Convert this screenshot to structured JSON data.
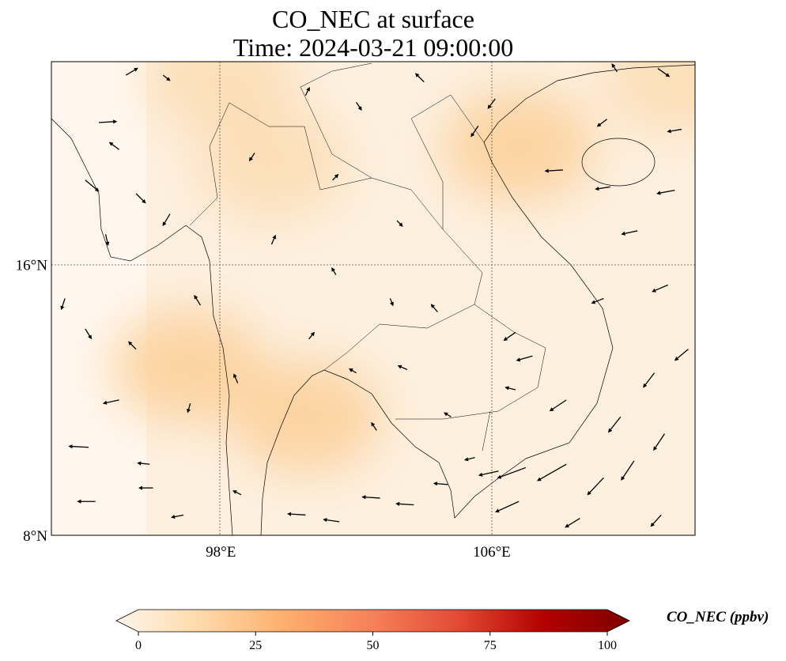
{
  "title": {
    "line1": "CO_NEC at surface",
    "line2": "Time: 2024-03-21 09:00:00"
  },
  "chart_data": {
    "type": "heatmap",
    "variable": "CO_NEC",
    "units": "ppbv",
    "extent": {
      "lon": [
        93,
        112
      ],
      "lat": [
        8,
        22
      ]
    },
    "x_ticks": [
      {
        "value": 98,
        "label": "98°E"
      },
      {
        "value": 106,
        "label": "106°E"
      }
    ],
    "y_ticks": [
      {
        "value": 16,
        "label": "16°N"
      },
      {
        "value": 8,
        "label": "8°N"
      }
    ],
    "gridlines": true,
    "colorbar": {
      "label": "CO_NEC (ppbv)",
      "range": [
        0,
        100
      ],
      "extend": "both",
      "ticks": [
        0,
        25,
        50,
        75,
        100
      ],
      "colormap": [
        "#fff5eb",
        "#fdd9a8",
        "#fdae6b",
        "#f6805a",
        "#e34a33",
        "#b30000",
        "#7f0000"
      ]
    },
    "concentration_hotspots": [
      {
        "lon": 100.5,
        "lat": 11.5,
        "value": 22
      },
      {
        "lon": 97.0,
        "lat": 13.0,
        "value": 20
      },
      {
        "lon": 106.8,
        "lat": 19.5,
        "value": 20
      },
      {
        "lon": 99.5,
        "lat": 19.0,
        "value": 14
      },
      {
        "lon": 111.5,
        "lat": 21.5,
        "value": 18
      },
      {
        "lon": 98.0,
        "lat": 21.5,
        "value": 14
      }
    ],
    "wind_vectors": [
      [
        95.2,
        21.6,
        1,
        0.6
      ],
      [
        96.3,
        21.6,
        0.5,
        -0.4
      ],
      [
        94.4,
        20.2,
        1.6,
        0.1
      ],
      [
        95.0,
        19.4,
        -0.8,
        0.6
      ],
      [
        94.0,
        18.5,
        1.2,
        -1.0
      ],
      [
        95.5,
        18.1,
        0.8,
        -0.8
      ],
      [
        96.5,
        17.5,
        -0.6,
        -1.0
      ],
      [
        94.6,
        16.9,
        0.2,
        -0.9
      ],
      [
        93.4,
        15.0,
        -0.3,
        -0.9
      ],
      [
        94.0,
        14.1,
        0.5,
        -0.8
      ],
      [
        95.0,
        12.0,
        -1.4,
        -0.3
      ],
      [
        94.1,
        10.6,
        -1.8,
        0.1
      ],
      [
        95.9,
        10.1,
        -1.0,
        0.1
      ],
      [
        94.3,
        9.0,
        -1.6,
        0
      ],
      [
        96.0,
        9.4,
        -1.2,
        0
      ],
      [
        96.9,
        8.6,
        -1.0,
        -0.2
      ],
      [
        98.6,
        9.2,
        -0.6,
        0.3
      ],
      [
        100.5,
        8.6,
        -1.6,
        0.1
      ],
      [
        101.5,
        8.4,
        -1.4,
        0.2
      ],
      [
        102.7,
        9.1,
        -1.6,
        0.1
      ],
      [
        103.7,
        8.9,
        -1.6,
        0.1
      ],
      [
        104.7,
        9.5,
        -1.2,
        0.1
      ],
      [
        105.5,
        10.3,
        -0.8,
        -0.2
      ],
      [
        106.2,
        9.9,
        -1.8,
        -0.4
      ],
      [
        107.0,
        10.0,
        -2.7,
        -1.0
      ],
      [
        108.2,
        10.1,
        -2.8,
        -1.6
      ],
      [
        106.8,
        9.0,
        -2.2,
        -1.0
      ],
      [
        108.6,
        8.5,
        -1.3,
        -0.8
      ],
      [
        109.3,
        9.7,
        -1.5,
        -1.6
      ],
      [
        110.2,
        10.2,
        -1.2,
        -1.8
      ],
      [
        111.0,
        8.6,
        -0.9,
        -1.0
      ],
      [
        109.8,
        11.5,
        -1.1,
        -1.4
      ],
      [
        111.1,
        11.0,
        -1.0,
        -1.5
      ],
      [
        110.8,
        12.8,
        -1.0,
        -1.3
      ],
      [
        111.8,
        13.5,
        -1.2,
        -1.0
      ],
      [
        108.2,
        12.0,
        -1.5,
        -1.0
      ],
      [
        107.2,
        13.3,
        -1.4,
        -0.4
      ],
      [
        106.7,
        14.0,
        -1.0,
        -0.7
      ],
      [
        109.3,
        15.0,
        -1.0,
        -0.4
      ],
      [
        111.2,
        15.4,
        -1.4,
        -0.6
      ],
      [
        110.3,
        17.0,
        -1.4,
        -0.3
      ],
      [
        111.4,
        18.2,
        -1.6,
        -0.3
      ],
      [
        109.5,
        18.3,
        -1.3,
        -0.2
      ],
      [
        108.1,
        18.8,
        -1.6,
        -0.1
      ],
      [
        109.4,
        20.3,
        -0.8,
        -0.6
      ],
      [
        110.9,
        21.8,
        1.0,
        -0.7
      ],
      [
        109.7,
        21.7,
        -0.4,
        0.6
      ],
      [
        111.6,
        20.0,
        -1.2,
        -0.2
      ],
      [
        105.6,
        20.1,
        -0.6,
        -0.9
      ],
      [
        106.1,
        20.9,
        -0.6,
        -0.8
      ],
      [
        104.0,
        21.4,
        -0.7,
        0.7
      ],
      [
        102.0,
        20.8,
        0.4,
        -0.6
      ],
      [
        100.5,
        21.0,
        0.3,
        0.6
      ],
      [
        99.0,
        19.3,
        -0.4,
        -0.6
      ],
      [
        101.3,
        18.5,
        0.4,
        0.4
      ],
      [
        103.2,
        17.3,
        0.4,
        -0.4
      ],
      [
        99.5,
        16.6,
        0.3,
        0.7
      ],
      [
        101.4,
        15.7,
        -0.3,
        0.5
      ],
      [
        103.0,
        15.0,
        0.2,
        -0.5
      ],
      [
        104.4,
        14.6,
        -0.5,
        0.6
      ],
      [
        100.6,
        13.8,
        0.4,
        0.5
      ],
      [
        97.4,
        14.8,
        -0.5,
        0.8
      ],
      [
        98.5,
        12.5,
        -0.3,
        0.7
      ],
      [
        102.0,
        12.8,
        -0.5,
        0.3
      ],
      [
        103.5,
        12.9,
        -0.7,
        0.3
      ],
      [
        104.8,
        11.5,
        -0.5,
        0.3
      ],
      [
        106.7,
        12.3,
        -0.8,
        0.2
      ],
      [
        102.6,
        11.1,
        -0.4,
        0.6
      ],
      [
        97.1,
        11.9,
        -0.2,
        -0.7
      ],
      [
        95.5,
        13.5,
        -0.6,
        0.6
      ]
    ]
  }
}
